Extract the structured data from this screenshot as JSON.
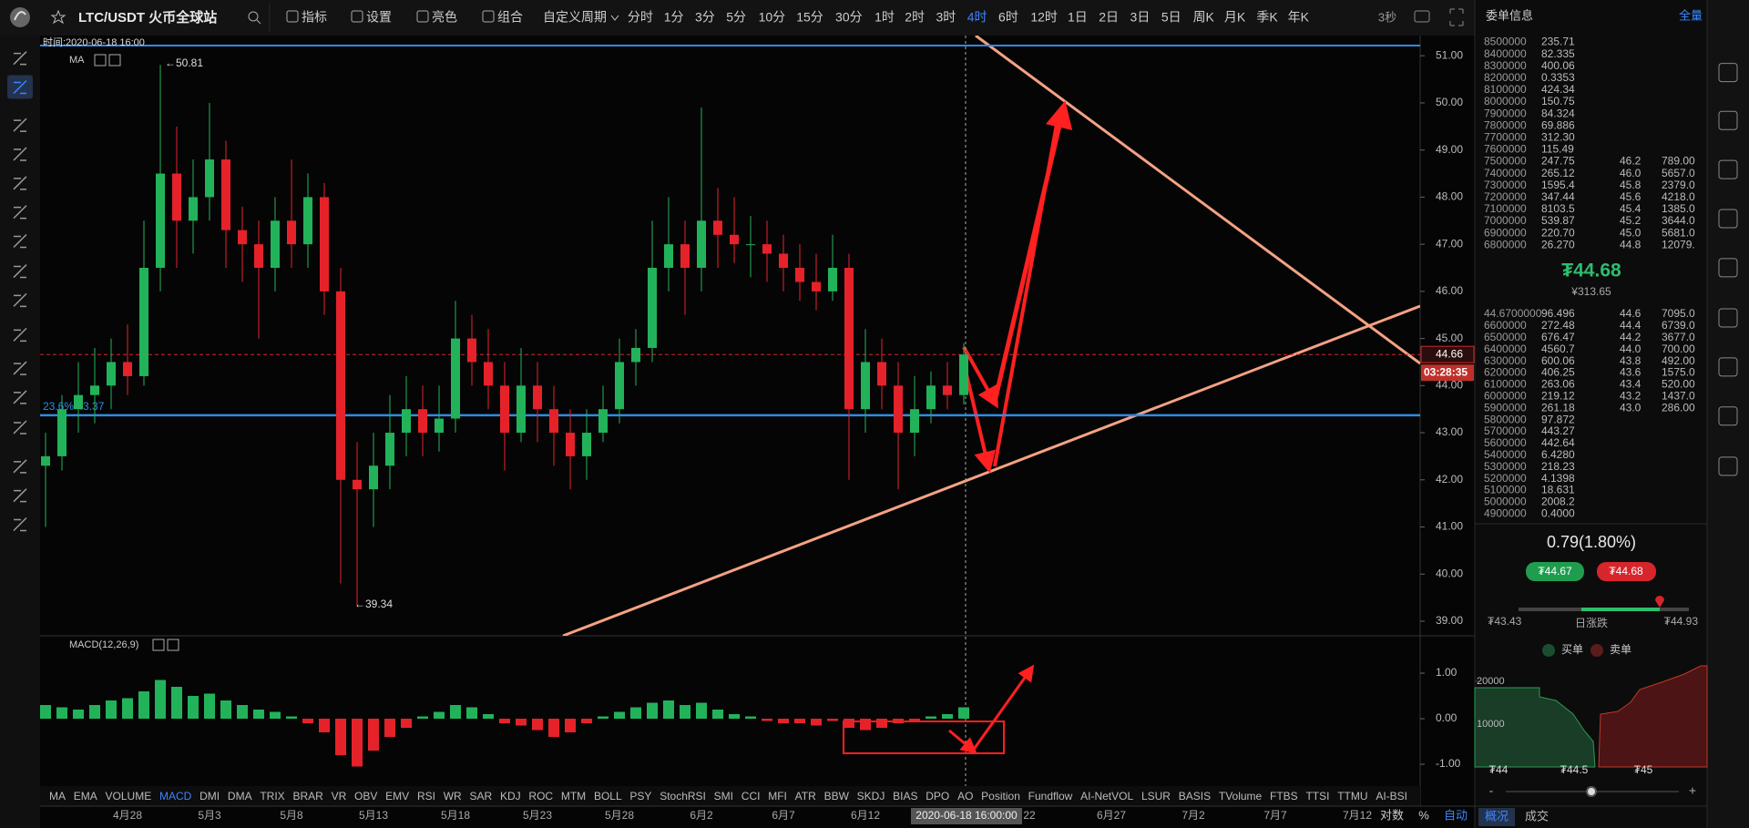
{
  "toolbar": {
    "title": "LTC/USDT 火币全球站",
    "menus": [
      "指标",
      "设置",
      "亮色",
      "组合"
    ],
    "custom_period": "自定义周期",
    "periods": [
      "分时",
      "1分",
      "3分",
      "5分",
      "10分",
      "15分",
      "30分",
      "1时",
      "2时",
      "3时",
      "4时",
      "6时",
      "12时",
      "1日",
      "2日",
      "3日",
      "5日",
      "周K",
      "月K",
      "季K",
      "年K"
    ],
    "active_period": 10,
    "refresh": "3秒"
  },
  "chart": {
    "time_label": "时间:2020-06-18 16:00",
    "ma_label": "MA",
    "high_label": "←50.81",
    "low_label": "←39.34",
    "fib_label": "23.6% 43.37",
    "fib_level": 43.37,
    "last_price": {
      "value": 44.66,
      "label": "44.66"
    },
    "countdown": "03:28:35",
    "ylim": [
      38.69,
      51.43
    ],
    "yticks": [
      {
        "value": 51,
        "label": "51.00"
      },
      {
        "value": 50,
        "label": "50.00"
      },
      {
        "value": 49,
        "label": "49.00"
      },
      {
        "value": 48,
        "label": "48.00"
      },
      {
        "value": 47,
        "label": "47.00"
      },
      {
        "value": 46,
        "label": "46.00"
      },
      {
        "value": 45,
        "label": "45.00"
      },
      {
        "value": 44,
        "label": "44.00"
      },
      {
        "value": 43,
        "label": "43.00"
      },
      {
        "value": 42,
        "label": "42.00"
      },
      {
        "value": 41,
        "label": "41.00"
      },
      {
        "value": 40,
        "label": "40.00"
      },
      {
        "value": 39,
        "label": "39.00"
      }
    ],
    "ohlc": [
      [
        42.3,
        43.0,
        41.0,
        42.5
      ],
      [
        42.5,
        43.8,
        42.2,
        43.5
      ],
      [
        43.5,
        44.5,
        43.0,
        43.8
      ],
      [
        43.8,
        44.8,
        43.2,
        44.0
      ],
      [
        44.0,
        45.0,
        43.5,
        44.5
      ],
      [
        44.5,
        45.3,
        43.8,
        44.2
      ],
      [
        44.2,
        47.5,
        44.0,
        46.5
      ],
      [
        46.5,
        50.81,
        46.0,
        48.5
      ],
      [
        48.5,
        49.5,
        46.5,
        47.5
      ],
      [
        47.5,
        48.8,
        46.8,
        48.0
      ],
      [
        48.0,
        50.0,
        47.5,
        48.8
      ],
      [
        48.8,
        49.2,
        46.5,
        47.3
      ],
      [
        47.3,
        47.8,
        46.2,
        47.0
      ],
      [
        47.0,
        47.5,
        45.0,
        46.5
      ],
      [
        46.5,
        48.0,
        46.0,
        47.5
      ],
      [
        47.5,
        48.8,
        46.5,
        47.0
      ],
      [
        47.0,
        48.5,
        46.5,
        48.0
      ],
      [
        48.0,
        48.3,
        45.5,
        46.0
      ],
      [
        46.0,
        46.5,
        39.8,
        42.0
      ],
      [
        42.0,
        42.8,
        39.34,
        41.8
      ],
      [
        41.8,
        43.0,
        41.0,
        42.3
      ],
      [
        42.3,
        43.8,
        41.8,
        43.0
      ],
      [
        43.0,
        44.2,
        42.5,
        43.5
      ],
      [
        43.5,
        44.0,
        42.5,
        43.0
      ],
      [
        43.0,
        44.0,
        42.6,
        43.3
      ],
      [
        43.3,
        45.8,
        43.0,
        45.0
      ],
      [
        45.0,
        45.5,
        44.0,
        44.5
      ],
      [
        44.5,
        45.2,
        43.5,
        44.0
      ],
      [
        44.0,
        44.5,
        42.2,
        43.0
      ],
      [
        43.0,
        44.8,
        42.8,
        44.0
      ],
      [
        44.0,
        44.5,
        42.8,
        43.5
      ],
      [
        43.5,
        44.0,
        42.3,
        43.0
      ],
      [
        43.0,
        43.5,
        41.8,
        42.5
      ],
      [
        42.5,
        43.5,
        42.0,
        43.0
      ],
      [
        43.0,
        44.0,
        42.8,
        43.5
      ],
      [
        43.5,
        45.0,
        43.2,
        44.5
      ],
      [
        44.5,
        45.2,
        44.0,
        44.8
      ],
      [
        44.8,
        47.5,
        44.5,
        46.5
      ],
      [
        46.5,
        48.0,
        46.0,
        47.0
      ],
      [
        47.0,
        47.5,
        45.5,
        46.5
      ],
      [
        46.5,
        49.9,
        46.0,
        47.5
      ],
      [
        47.5,
        48.2,
        46.5,
        47.2
      ],
      [
        47.2,
        48.0,
        46.6,
        47.0
      ],
      [
        47.0,
        47.6,
        46.3,
        47.0
      ],
      [
        47.0,
        47.5,
        46.2,
        46.8
      ],
      [
        46.8,
        47.2,
        46.0,
        46.5
      ],
      [
        46.5,
        47.0,
        45.8,
        46.2
      ],
      [
        46.2,
        46.8,
        45.6,
        46.0
      ],
      [
        46.0,
        47.2,
        45.8,
        46.5
      ],
      [
        46.5,
        46.8,
        42.0,
        43.5
      ],
      [
        43.5,
        45.2,
        43.0,
        44.5
      ],
      [
        44.5,
        45.0,
        43.5,
        44.0
      ],
      [
        44.0,
        44.5,
        41.8,
        43.0
      ],
      [
        43.0,
        44.2,
        42.5,
        43.5
      ],
      [
        43.5,
        44.3,
        43.2,
        44.0
      ],
      [
        44.0,
        44.5,
        43.5,
        43.8
      ],
      [
        43.8,
        44.9,
        43.6,
        44.66
      ]
    ]
  },
  "macd": {
    "label": "MACD(12,26,9)",
    "ylim": [
      -1.48,
      1.82
    ],
    "yticks": [
      {
        "value": 1,
        "label": "1.00"
      },
      {
        "value": 0,
        "label": "0.00"
      },
      {
        "value": -1,
        "label": "-1.00"
      }
    ],
    "histogram": [
      0.3,
      0.25,
      0.2,
      0.3,
      0.4,
      0.45,
      0.6,
      0.85,
      0.7,
      0.5,
      0.55,
      0.4,
      0.3,
      0.2,
      0.15,
      0.05,
      -0.1,
      -0.3,
      -0.8,
      -1.05,
      -0.7,
      -0.4,
      -0.2,
      0.05,
      0.15,
      0.3,
      0.25,
      0.1,
      -0.1,
      -0.15,
      -0.25,
      -0.4,
      -0.3,
      -0.1,
      0.05,
      0.15,
      0.25,
      0.35,
      0.4,
      0.3,
      0.35,
      0.2,
      0.1,
      0.05,
      -0.05,
      -0.1,
      -0.1,
      -0.15,
      -0.05,
      -0.2,
      -0.25,
      -0.2,
      -0.1,
      -0.05,
      0.05,
      0.1,
      0.25
    ]
  },
  "indicators": {
    "tabs": [
      "MA",
      "EMA",
      "VOLUME",
      "MACD",
      "DMI",
      "DMA",
      "TRIX",
      "BRAR",
      "VR",
      "OBV",
      "EMV",
      "RSI",
      "WR",
      "SAR",
      "KDJ",
      "ROC",
      "MTM",
      "BOLL",
      "PSY",
      "StochRSI",
      "SMI",
      "CCI",
      "MFI",
      "ATR",
      "BBW",
      "SKDJ",
      "BIAS",
      "DPO",
      "AO",
      "Position",
      "Fundflow",
      "AI-NetVOL",
      "LSUR",
      "BASIS",
      "TVolume",
      "FTBS",
      "TTSI",
      "TTMU",
      "AI-BSI"
    ],
    "active": 3,
    "options": [
      "对数",
      "%",
      "自动"
    ]
  },
  "date_axis": {
    "labels": [
      "4月28",
      "5月3",
      "5月8",
      "5月13",
      "5月18",
      "5月23",
      "5月28",
      "6月2",
      "6月7",
      "6月12",
      null,
      "22",
      "6月27",
      "7月2",
      "7月7",
      "7月12"
    ],
    "cursor": "2020-06-18 16:00:00"
  },
  "order_book": {
    "title": "委单信息",
    "mode": "全量",
    "asks": [
      [
        "8500000",
        "235.71"
      ],
      [
        "8400000",
        "82.335"
      ],
      [
        "8300000",
        "400.06"
      ],
      [
        "8200000",
        "0.3353"
      ],
      [
        "8100000",
        "424.34"
      ],
      [
        "8000000",
        "150.75"
      ],
      [
        "7900000",
        "84.324"
      ],
      [
        "7800000",
        "69.886"
      ],
      [
        "7700000",
        "312.30"
      ],
      [
        "7600000",
        "115.49"
      ],
      [
        "7500000",
        "247.75",
        "46.2",
        "789.00"
      ],
      [
        "7400000",
        "265.12",
        "46.0",
        "5657.0"
      ],
      [
        "7300000",
        "1595.4",
        "45.8",
        "2379.0"
      ],
      [
        "7200000",
        "347.44",
        "45.6",
        "4218.0"
      ],
      [
        "7100000",
        "8103.5",
        "45.4",
        "1385.0"
      ],
      [
        "7000000",
        "539.87",
        "45.2",
        "3644.0"
      ],
      [
        "6900000",
        "220.70",
        "45.0",
        "5681.0"
      ],
      [
        "6800000",
        "26.270",
        "44.8",
        "12079."
      ]
    ],
    "price": "₮44.68",
    "price_cny": "¥313.65",
    "bids": [
      [
        "44.6700000",
        "96.496",
        "44.6",
        "7095.0"
      ],
      [
        "6600000",
        "272.48",
        "44.4",
        "6739.0"
      ],
      [
        "6500000",
        "676.47",
        "44.2",
        "3677.0"
      ],
      [
        "6400000",
        "4560.7",
        "44.0",
        "700.00"
      ],
      [
        "6300000",
        "600.06",
        "43.8",
        "492.00"
      ],
      [
        "6200000",
        "406.25",
        "43.6",
        "1575.0"
      ],
      [
        "6100000",
        "263.06",
        "43.4",
        "520.00"
      ],
      [
        "6000000",
        "219.12",
        "43.2",
        "1437.0"
      ],
      [
        "5900000",
        "261.18",
        "43.0",
        "286.00"
      ],
      [
        "5800000",
        "97.872"
      ],
      [
        "5700000",
        "443.27"
      ],
      [
        "5600000",
        "442.64"
      ],
      [
        "5400000",
        "6.4280"
      ],
      [
        "5300000",
        "218.23"
      ],
      [
        "5200000",
        "4.1398"
      ],
      [
        "5100000",
        "18.631"
      ],
      [
        "5000000",
        "2008.2"
      ],
      [
        "4900000",
        "0.4000"
      ]
    ]
  },
  "stats": {
    "change": "0.79(1.80%)",
    "bid": "₮44.67",
    "ask": "₮44.68",
    "low": "₮43.43",
    "range_label": "日涨跌",
    "high": "₮44.93"
  },
  "depth": {
    "legend": [
      "买单",
      "卖单"
    ],
    "ylim": [
      0,
      23600
    ],
    "yticks": [
      20000,
      10000
    ],
    "xticks": [
      "₮44",
      "₮44.5",
      "₮45"
    ]
  },
  "bottom_tabs": [
    "概况",
    "成交"
  ]
}
